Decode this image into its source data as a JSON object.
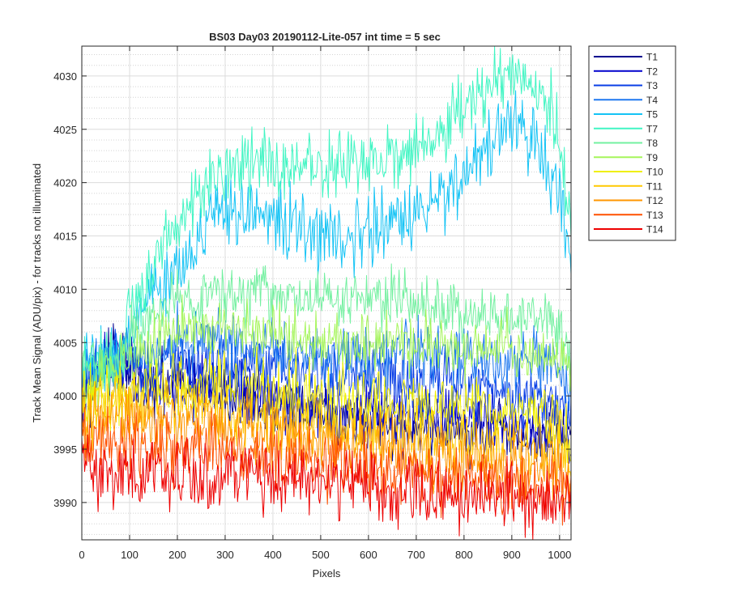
{
  "chart_data": {
    "type": "line",
    "title": "BS03 Day03 20190112-Lite-057 int time = 5 sec",
    "xlabel": "Pixels",
    "ylabel": "Track Mean Signal (ADU/pix) - for tracks not illuminated",
    "xlim": [
      0,
      1024
    ],
    "ylim": [
      3986.5,
      4032.8
    ],
    "x_ticks": [
      0,
      100,
      200,
      300,
      400,
      500,
      600,
      700,
      800,
      900,
      1000
    ],
    "y_ticks": [
      3990,
      3995,
      4000,
      4005,
      4010,
      4015,
      4020,
      4025,
      4030
    ],
    "x_tick_labels": [
      "0",
      "100",
      "200",
      "300",
      "400",
      "500",
      "600",
      "700",
      "800",
      "900",
      "1000"
    ],
    "y_tick_labels": [
      "3990",
      "3995",
      "4000",
      "4005",
      "4010",
      "4015",
      "4020",
      "4025",
      "4030"
    ],
    "grid": true,
    "minor_grid": true,
    "legend_position": "outside-right",
    "x_step": 16,
    "series": [
      {
        "name": "T1",
        "color": "#00008f",
        "noise": 1.4,
        "values": [
          4000,
          4001,
          4002,
          4003,
          4003,
          4003.5,
          4003,
          4002,
          4001,
          4001,
          4000.5,
          4001,
          4001,
          4001,
          4000.5,
          4000.5,
          4000.5,
          4000,
          4000,
          4000,
          3999.5,
          3999.5,
          3999.5,
          3999.5,
          3999.5,
          3999,
          3999,
          3999,
          3999,
          3999,
          3998,
          3998,
          3998,
          3998,
          3998,
          3998,
          3998,
          3997.5,
          3997.5,
          3997.5,
          3997.5,
          3997,
          3997,
          3997,
          3997,
          3997,
          3997,
          3997,
          3997,
          3997,
          3996.5,
          3996.5,
          3996.5,
          3996.5,
          3996.5,
          3996.5,
          3996,
          3996,
          3996,
          3996,
          3996,
          3996,
          3996,
          3996,
          3996
        ]
      },
      {
        "name": "T2",
        "color": "#0000cd",
        "noise": 1.4,
        "values": [
          4000,
          4001,
          4002,
          4003,
          4003,
          4003.5,
          4003,
          4002,
          4001,
          4001,
          4001,
          4001,
          4001,
          4001,
          4001,
          4001,
          4001,
          4001,
          4001,
          4000.5,
          4000.5,
          4000.5,
          4000.5,
          4000,
          4000,
          4000,
          4000,
          4000,
          3999.5,
          3999.5,
          3999,
          3999,
          3999,
          3999,
          3999,
          3998.5,
          3998.5,
          3998.5,
          3998.5,
          3998.5,
          3998.5,
          3998.5,
          3998.5,
          3998.5,
          3998.5,
          3998,
          3998,
          3998,
          3998,
          3998,
          3998,
          3998,
          3998,
          3998,
          3997.5,
          3997.5,
          3997.5,
          3997.5,
          3997,
          3997,
          3997,
          3997,
          3997,
          3997,
          3996
        ]
      },
      {
        "name": "T3",
        "color": "#0a3fe6",
        "noise": 1.5,
        "values": [
          4001,
          4002,
          4003,
          4004,
          4004,
          4004,
          4003.5,
          4003,
          4002,
          4002,
          4002,
          4002.5,
          4003,
          4003,
          4003,
          4003,
          4003,
          4003,
          4003,
          4002.5,
          4002.5,
          4002.5,
          4002.5,
          4002.5,
          4002.5,
          4002.5,
          4002.5,
          4002.5,
          4002,
          4002,
          4002,
          4002,
          4002,
          4002,
          4002,
          4002,
          4001.5,
          4001.5,
          4001.5,
          4001.5,
          4001.5,
          4001.5,
          4001.5,
          4001.5,
          4001.5,
          4001,
          4001,
          4001,
          4001,
          4001,
          4001,
          4000.5,
          4000.5,
          4000.5,
          4000.5,
          4000.5,
          4000.5,
          4000.5,
          4000,
          4000,
          4000,
          4000,
          3999.5,
          3999,
          3998
        ]
      },
      {
        "name": "T4",
        "color": "#1e78f0",
        "noise": 1.5,
        "values": [
          4001,
          4002,
          4003,
          4004,
          4004,
          4004,
          4003.5,
          4003,
          4003,
          4003.5,
          4004,
          4004.5,
          4005,
          4005,
          4005,
          4005,
          4005,
          4005,
          4005,
          4005,
          4004.5,
          4004.5,
          4004.5,
          4004.5,
          4004.5,
          4004,
          4004,
          4004,
          4004,
          4004,
          4004,
          4004,
          4004,
          4004,
          4004,
          4004,
          4004,
          4004,
          4004,
          4004,
          4004,
          4004,
          4004,
          4004,
          4004,
          4003.5,
          4003.5,
          4003.5,
          4003.5,
          4003.5,
          4003.5,
          4003.5,
          4003.5,
          4003.5,
          4003.5,
          4003,
          4003,
          4003,
          4003,
          4003,
          4002.5,
          4002.5,
          4002,
          4001,
          4000
        ]
      },
      {
        "name": "T5",
        "color": "#14c3f5",
        "noise": 1.6,
        "values": [
          4002,
          4003,
          4003,
          4003,
          4003.5,
          4004,
          4006,
          4008,
          4009,
          4009.5,
          4010,
          4011,
          4012,
          4013,
          4014,
          4015,
          4015.5,
          4016,
          4016.5,
          4017,
          4017,
          4017,
          4017,
          4017,
          4017,
          4016.5,
          4016.5,
          4016,
          4016,
          4015.5,
          4015,
          4015,
          4015,
          4015,
          4015,
          4015,
          4015,
          4015.5,
          4015.5,
          4016,
          4016,
          4016,
          4016.5,
          4016.5,
          4017,
          4017.5,
          4018,
          4019,
          4019.5,
          4020,
          4021,
          4022,
          4023,
          4023.5,
          4024,
          4024.5,
          4025,
          4025,
          4024.5,
          4024,
          4023,
          4021,
          4019,
          4016,
          4012
        ]
      },
      {
        "name": "T7",
        "color": "#41f5c3",
        "noise": 1.6,
        "values": [
          4002,
          4003,
          4003,
          4003,
          4003.5,
          4004,
          4006,
          4009,
          4010,
          4011,
          4013,
          4014,
          4016,
          4017,
          4018,
          4019,
          4019.5,
          4020,
          4020.5,
          4021,
          4021.5,
          4021.5,
          4022,
          4022,
          4022,
          4022,
          4021.5,
          4021.5,
          4021.5,
          4021.5,
          4021.5,
          4021.5,
          4021.5,
          4021.5,
          4021.5,
          4022,
          4022,
          4022,
          4022,
          4022,
          4022.5,
          4022.5,
          4023,
          4023,
          4023,
          4023.5,
          4024,
          4024.5,
          4025,
          4026,
          4027,
          4027.5,
          4028,
          4028.5,
          4029,
          4029.5,
          4030,
          4030,
          4030,
          4029.5,
          4029,
          4027.5,
          4025,
          4021,
          4015
        ]
      },
      {
        "name": "T8",
        "color": "#73f0a0",
        "noise": 1.3,
        "values": [
          4002,
          4003,
          4003,
          4003,
          4003.5,
          4004,
          4005,
          4006,
          4006.5,
          4007,
          4007.5,
          4008,
          4008.5,
          4009,
          4009,
          4009,
          4009,
          4009.5,
          4009.5,
          4009.5,
          4009.5,
          4009.5,
          4009.5,
          4009.5,
          4009.5,
          4009,
          4009,
          4009,
          4009,
          4009,
          4009,
          4009,
          4009,
          4009,
          4009,
          4009,
          4009,
          4009,
          4009,
          4009,
          4009,
          4009,
          4009,
          4009,
          4008.5,
          4008.5,
          4008.5,
          4008.5,
          4008,
          4008,
          4007.5,
          4007.5,
          4007.5,
          4007.5,
          4007.5,
          4007.5,
          4007.5,
          4007.5,
          4007.5,
          4007.5,
          4007.5,
          4007,
          4006.5,
          4005,
          4003.5
        ]
      },
      {
        "name": "T9",
        "color": "#a5f55a",
        "noise": 1.4,
        "values": [
          4001,
          4002,
          4002,
          4002,
          4002.5,
          4003,
          4003.5,
          4004,
          4004.5,
          4005,
          4005.5,
          4006,
          4006,
          4006,
          4006,
          4006,
          4006,
          4006,
          4006,
          4006,
          4006,
          4006,
          4006,
          4006,
          4006,
          4006,
          4005.5,
          4005.5,
          4005.5,
          4005.5,
          4005.5,
          4005.5,
          4005.5,
          4005.5,
          4005,
          4005,
          4005,
          4005,
          4005,
          4005,
          4005,
          4005,
          4005,
          4005,
          4005,
          4005,
          4005,
          4004.5,
          4004.5,
          4004.5,
          4004.5,
          4004.5,
          4004.5,
          4004.5,
          4004.5,
          4004.5,
          4004.5,
          4004,
          4004,
          4004,
          4004,
          4004,
          4003.5,
          4003.5,
          4003
        ]
      },
      {
        "name": "T10",
        "color": "#f0f000",
        "noise": 1.6,
        "values": [
          3999,
          3999.5,
          4000,
          4000,
          4000,
          4000,
          4000,
          4000,
          4000.5,
          4001,
          4001,
          4001.5,
          4001.5,
          4001.5,
          4001.5,
          4001.5,
          4001.5,
          4001.5,
          4001,
          4001,
          4001,
          4001,
          4001,
          4001,
          4000.5,
          4000.5,
          4000.5,
          4000.5,
          4000.5,
          4000,
          4000,
          4000,
          4000,
          4000,
          4000,
          3999.5,
          3999.5,
          3999.5,
          3999.5,
          3999.5,
          3999.5,
          3999.5,
          3999.5,
          3999.5,
          3999.5,
          3999,
          3999,
          3999,
          3999,
          3999,
          3999,
          3999,
          3999,
          3999,
          3998.5,
          3998.5,
          3998.5,
          3998.5,
          3998.5,
          3998.5,
          3998,
          3998,
          3997.5,
          3997,
          3996
        ]
      },
      {
        "name": "T11",
        "color": "#ffc800",
        "noise": 1.5,
        "values": [
          3998,
          3998.5,
          3999,
          3999,
          3999,
          3999,
          3999,
          3999,
          3999,
          3999,
          3999,
          3999,
          3999,
          3999,
          3999,
          3999,
          3999,
          3999,
          3999,
          3998.5,
          3998.5,
          3998.5,
          3998.5,
          3998,
          3998,
          3998,
          3997.5,
          3997.5,
          3997.5,
          3997.5,
          3997,
          3997,
          3997,
          3997,
          3997,
          3997,
          3996.5,
          3996.5,
          3996.5,
          3996.5,
          3996.5,
          3996.5,
          3996.5,
          3996,
          3996,
          3996,
          3996,
          3996,
          3996,
          3996,
          3996,
          3995.5,
          3995.5,
          3995.5,
          3995.5,
          3995.5,
          3995.5,
          3995.5,
          3995,
          3995,
          3995,
          3995,
          3995,
          3994.5,
          3994
        ]
      },
      {
        "name": "T12",
        "color": "#ff9600",
        "noise": 1.5,
        "values": [
          3997,
          3997,
          3997.5,
          3998,
          3998,
          3998,
          3998,
          3998,
          3997.5,
          3997.5,
          3997.5,
          3997.5,
          3997.5,
          3997.5,
          3997.5,
          3997.5,
          3997.5,
          3997.5,
          3997.5,
          3997,
          3997,
          3997,
          3997,
          3996.5,
          3996.5,
          3996.5,
          3996.5,
          3996,
          3996,
          3996,
          3995.5,
          3995.5,
          3995.5,
          3995.5,
          3995.5,
          3995,
          3995,
          3995,
          3995,
          3995,
          3995,
          3995,
          3994.5,
          3994.5,
          3994.5,
          3994.5,
          3994.5,
          3994.5,
          3994,
          3994,
          3994,
          3994,
          3994,
          3994,
          3993.5,
          3993.5,
          3993.5,
          3993.5,
          3993.5,
          3993.5,
          3993,
          3993,
          3993,
          3992.5,
          3992
        ]
      },
      {
        "name": "T13",
        "color": "#ff5000",
        "noise": 1.5,
        "values": [
          3996,
          3995.5,
          3995.5,
          3995.5,
          3995.5,
          3995,
          3995,
          3995,
          3995,
          3995,
          3995,
          3995,
          3995,
          3995,
          3995,
          3995,
          3995,
          3995,
          3995,
          3995,
          3995,
          3994.5,
          3994.5,
          3994.5,
          3994.5,
          3994.5,
          3994,
          3994,
          3994,
          3994,
          3993.5,
          3993.5,
          3993.5,
          3993.5,
          3993.5,
          3993.5,
          3993.5,
          3993.5,
          3993,
          3993,
          3993,
          3993,
          3993,
          3993,
          3993,
          3992.5,
          3992.5,
          3992.5,
          3992.5,
          3992.5,
          3992.5,
          3992.5,
          3992,
          3992,
          3992,
          3992,
          3992,
          3992,
          3991.5,
          3991.5,
          3991.5,
          3991.5,
          3991.5,
          3991,
          3990.5
        ]
      },
      {
        "name": "T14",
        "color": "#ee0000",
        "noise": 1.6,
        "values": [
          3994,
          3993.5,
          3993,
          3993,
          3993,
          3992.5,
          3992.5,
          3992.5,
          3992.5,
          3992.5,
          3992.5,
          3992.5,
          3992.5,
          3992.5,
          3992.5,
          3992.5,
          3992.5,
          3992.5,
          3992.5,
          3992.5,
          3992.5,
          3992.5,
          3992.5,
          3992.5,
          3992.5,
          3992.5,
          3992,
          3992,
          3992,
          3992,
          3992,
          3992,
          3992,
          3991.5,
          3991.5,
          3991.5,
          3991.5,
          3991.5,
          3991,
          3991,
          3991,
          3991,
          3991,
          3991,
          3990.5,
          3990.5,
          3990.5,
          3990.5,
          3990.5,
          3990.5,
          3990.5,
          3990.5,
          3990.5,
          3990.5,
          3990.5,
          3990.5,
          3990.5,
          3990,
          3990,
          3990,
          3990,
          3990,
          3990,
          3990,
          3989.5
        ]
      }
    ]
  }
}
